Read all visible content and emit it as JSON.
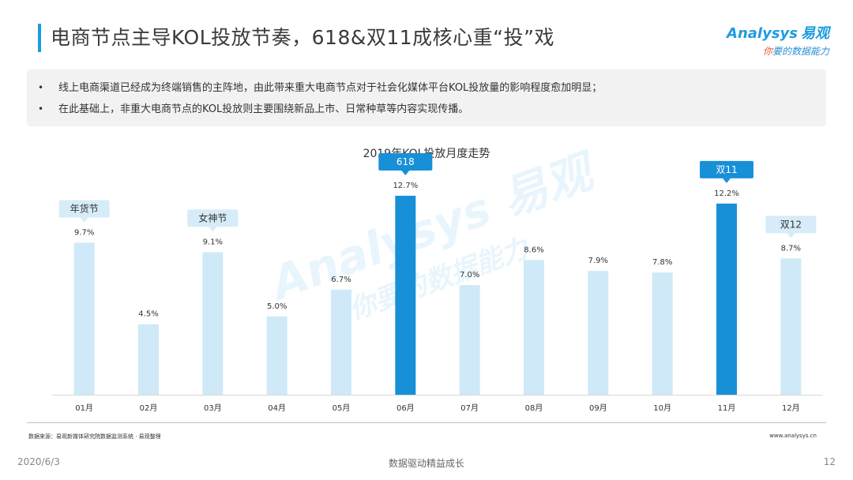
{
  "header": {
    "title": "电商节点主导KOL投放节奏，618&双11成核心重“投”戏",
    "logo_brand": "Analysys",
    "logo_cn": "易观",
    "logo_tag_prefix": "你",
    "logo_tag_rest": "要的数据能力"
  },
  "notes": [
    "线上电商渠道已经成为终端销售的主阵地，由此带来重大电商节点对于社会化媒体平台KOL投放量的影响程度愈加明显；",
    "在此基础上，非重大电商节点的KOL投放则主要围绕新品上市、日常种草等内容实现传播。"
  ],
  "watermark": {
    "line1": "Analysys 易观",
    "line2": "你要的数据能力"
  },
  "chart_data": {
    "type": "bar",
    "title": "2019年KOL投放月度走势",
    "categories": [
      "01月",
      "02月",
      "03月",
      "04月",
      "05月",
      "06月",
      "07月",
      "08月",
      "09月",
      "10月",
      "11月",
      "12月"
    ],
    "values": [
      9.7,
      4.5,
      9.1,
      5.0,
      6.7,
      12.7,
      7.0,
      8.6,
      7.9,
      7.8,
      12.2,
      8.7
    ],
    "value_labels": [
      "9.7%",
      "4.5%",
      "9.1%",
      "5.0%",
      "6.7%",
      "12.7%",
      "7.0%",
      "8.6%",
      "7.9%",
      "7.8%",
      "12.2%",
      "8.7%"
    ],
    "highlight_indices": [
      5,
      10
    ],
    "ylim": [
      0,
      13
    ],
    "grid": false,
    "colors": {
      "normal": "#cfe9f8",
      "highlight": "#1890d8",
      "callout_light": "#d6ecf8",
      "callout_dark": "#1890d8"
    },
    "annotations": [
      {
        "index": 0,
        "label": "年货节",
        "style": "light"
      },
      {
        "index": 2,
        "label": "女神节",
        "style": "light"
      },
      {
        "index": 5,
        "label": "618",
        "style": "dark"
      },
      {
        "index": 10,
        "label": "双11",
        "style": "dark"
      },
      {
        "index": 11,
        "label": "双12",
        "style": "light"
      }
    ]
  },
  "footer": {
    "source": "数据来源：易观新媒体研究院数据监测系统 · 易观整理",
    "url": "www.analysys.cn",
    "date": "2020/6/3",
    "center": "数据驱动精益成长",
    "page": "12"
  }
}
